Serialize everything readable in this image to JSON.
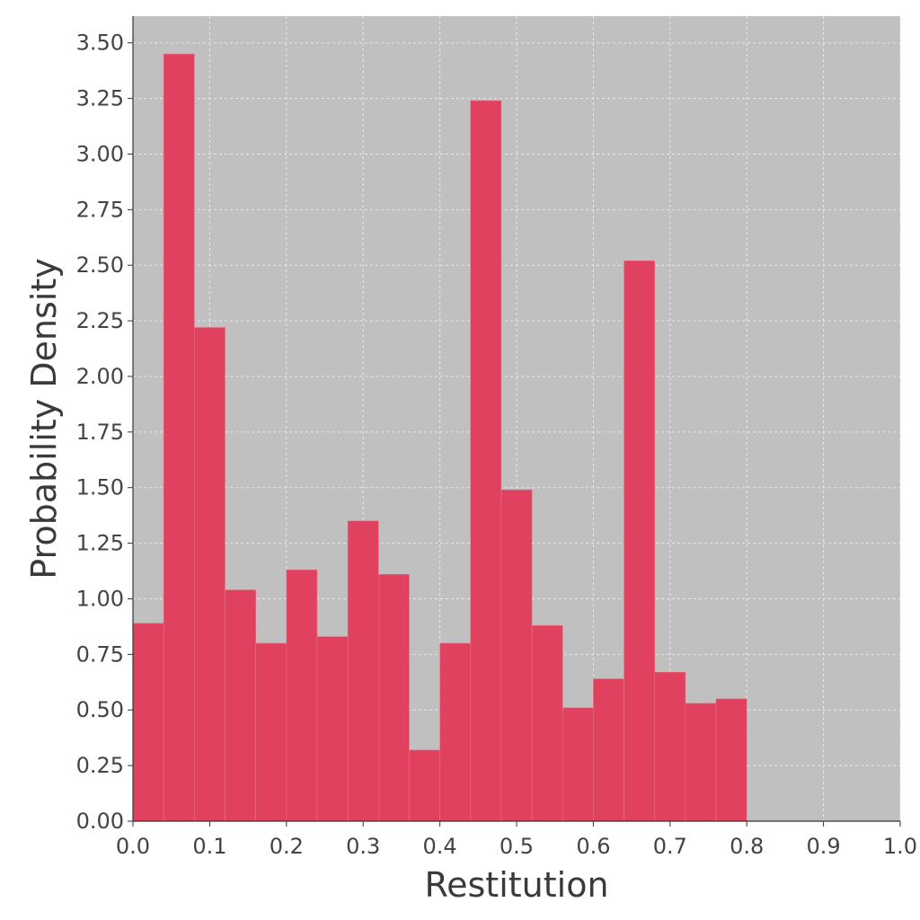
{
  "chart_data": {
    "type": "bar",
    "xlabel": "Restitution",
    "ylabel": "Probability Density",
    "xlim": [
      0.0,
      1.0
    ],
    "ylim": [
      0.0,
      3.62
    ],
    "grid": true,
    "x_ticks": [
      "0.0",
      "0.1",
      "0.2",
      "0.3",
      "0.4",
      "0.5",
      "0.6",
      "0.7",
      "0.8",
      "0.9",
      "1.0"
    ],
    "y_ticks": [
      "0.00",
      "0.25",
      "0.50",
      "0.75",
      "1.00",
      "1.25",
      "1.50",
      "1.75",
      "2.00",
      "2.25",
      "2.50",
      "2.75",
      "3.00",
      "3.25",
      "3.50"
    ],
    "bin_width": 0.04,
    "bin_starts": [
      0.0,
      0.04,
      0.08,
      0.12,
      0.16,
      0.2,
      0.24,
      0.28,
      0.32,
      0.36,
      0.4,
      0.44,
      0.48,
      0.52,
      0.56,
      0.6,
      0.64,
      0.68,
      0.72,
      0.76
    ],
    "values": [
      0.89,
      3.45,
      2.22,
      1.04,
      0.8,
      1.13,
      0.83,
      1.35,
      1.11,
      0.32,
      0.8,
      3.24,
      1.49,
      0.88,
      0.51,
      0.64,
      2.52,
      0.67,
      0.53,
      0.55
    ],
    "colors": {
      "bar": "#e0415f",
      "plot_background": "#c0c0c0",
      "grid": "#e8e8e8",
      "axis": "#333333",
      "text": "#444444"
    }
  }
}
